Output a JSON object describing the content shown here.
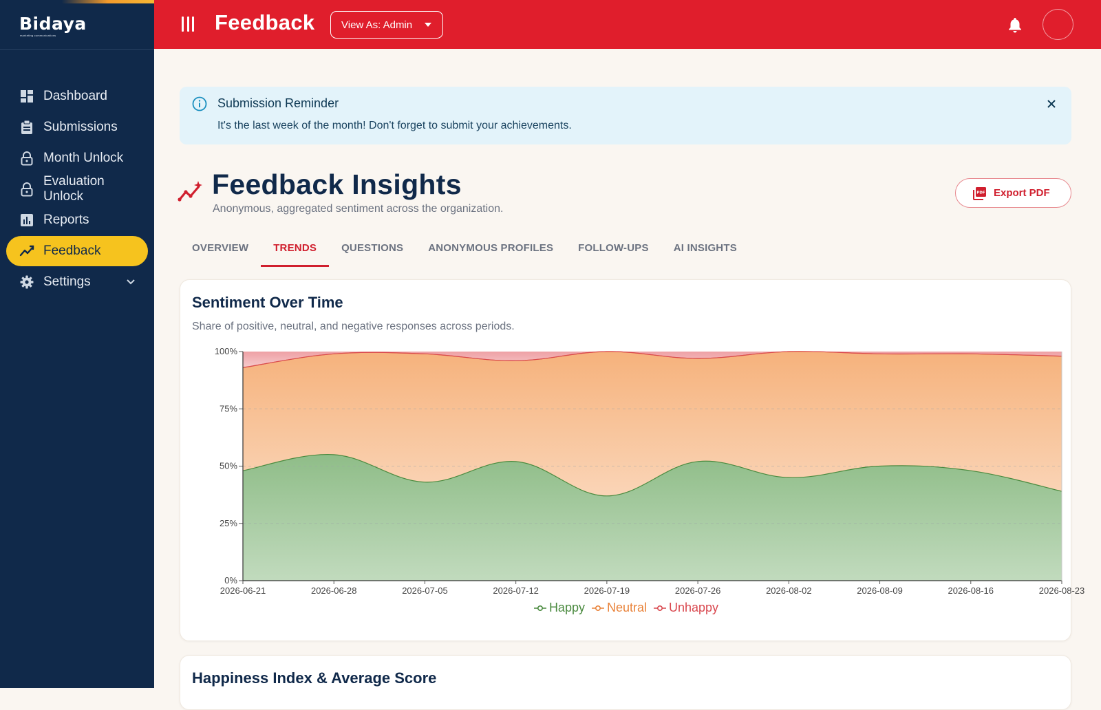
{
  "brand": {
    "name": "Bidaya",
    "tagline": "marketing communications"
  },
  "sidebar": {
    "items": [
      {
        "label": "Dashboard",
        "icon": "dashboard-icon",
        "active": false
      },
      {
        "label": "Submissions",
        "icon": "clipboard-icon",
        "active": false
      },
      {
        "label": "Month Unlock",
        "icon": "lock-icon",
        "active": false
      },
      {
        "label": "Evaluation Unlock",
        "icon": "lock-icon",
        "active": false
      },
      {
        "label": "Reports",
        "icon": "bar-chart-icon",
        "active": false
      },
      {
        "label": "Feedback",
        "icon": "trend-icon",
        "active": true
      },
      {
        "label": "Settings",
        "icon": "gear-icon",
        "active": false,
        "expandable": true
      }
    ]
  },
  "header": {
    "title": "Feedback",
    "view_as": "View As: Admin",
    "bg_color": "#e01e2c"
  },
  "alert": {
    "title": "Submission Reminder",
    "message": "It's the last week of the month! Don't forget to submit your achievements."
  },
  "page": {
    "title": "Feedback Insights",
    "subtitle": "Anonymous, aggregated sentiment across the organization.",
    "export_label": "Export PDF"
  },
  "tabs": [
    {
      "label": "OVERVIEW",
      "active": false
    },
    {
      "label": "TRENDS",
      "active": true
    },
    {
      "label": "QUESTIONS",
      "active": false
    },
    {
      "label": "ANONYMOUS PROFILES",
      "active": false
    },
    {
      "label": "FOLLOW-UPS",
      "active": false
    },
    {
      "label": "AI INSIGHTS",
      "active": false
    }
  ],
  "sentiment_card": {
    "title": "Sentiment Over Time",
    "subtitle": "Share of positive, neutral, and negative responses across periods."
  },
  "happiness_card": {
    "title": "Happiness Index & Average Score"
  },
  "chart_data": {
    "type": "area",
    "stacked": true,
    "title": "Sentiment Over Time",
    "x": [
      "2026-06-21",
      "2026-06-28",
      "2026-07-05",
      "2026-07-12",
      "2026-07-19",
      "2026-07-26",
      "2026-08-02",
      "2026-08-09",
      "2026-08-16",
      "2026-08-23"
    ],
    "y_ticks": [
      "0%",
      "25%",
      "50%",
      "75%",
      "100%"
    ],
    "ylim": [
      0,
      100
    ],
    "grid": true,
    "legend": "bottom-center",
    "series": [
      {
        "name": "Happy",
        "color": "#4a8a3f",
        "fill": "#8fbd88",
        "values": [
          48,
          55,
          43,
          52,
          37,
          52,
          45,
          50,
          48,
          39
        ]
      },
      {
        "name": "Neutral",
        "color": "#e9833a",
        "fill": "#f6b27c",
        "values": [
          45,
          44,
          56,
          44,
          63,
          45,
          55,
          49,
          51,
          59
        ]
      },
      {
        "name": "Unhappy",
        "color": "#d9484f",
        "fill": "#eea0a4",
        "values": [
          7,
          1,
          1,
          4,
          0,
          3,
          0,
          1,
          1,
          2
        ]
      }
    ]
  }
}
